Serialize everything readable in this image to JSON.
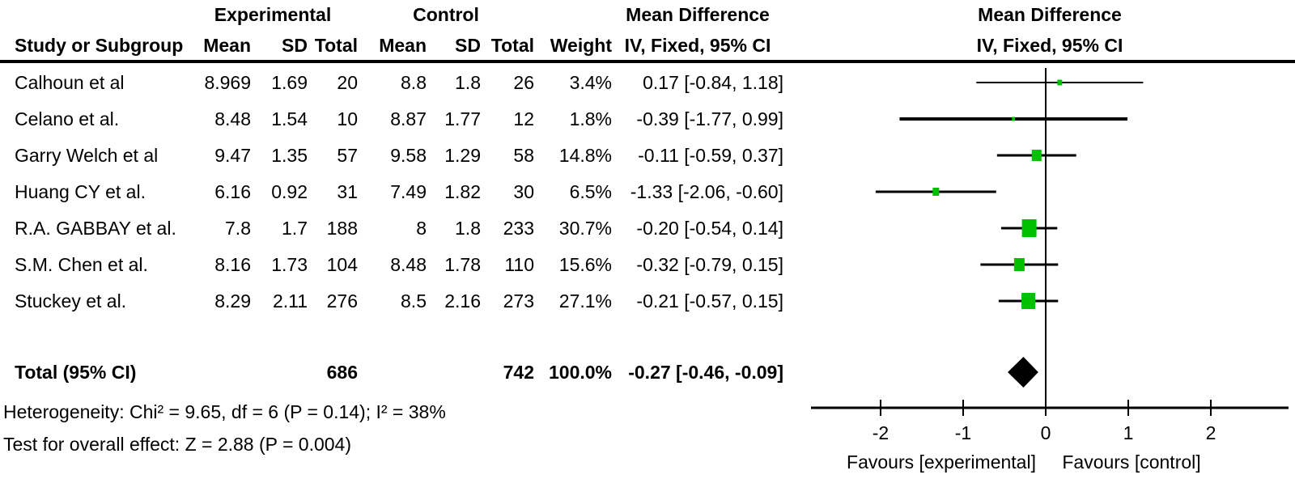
{
  "header": {
    "group_experimental": "Experimental",
    "group_control": "Control",
    "effect_text_title": "Mean Difference",
    "effect_plot_title": "Mean Difference",
    "columns": {
      "study": "Study or Subgroup",
      "mean_e": "Mean",
      "sd_e": "SD",
      "total_e": "Total",
      "mean_c": "Mean",
      "sd_c": "SD",
      "total_c": "Total",
      "weight": "Weight",
      "ci": "IV, Fixed, 95% CI",
      "ci_plot": "IV, Fixed, 95% CI"
    }
  },
  "table": {
    "rows": [
      {
        "study": "Calhoun et al",
        "mean_e": "8.969",
        "sd_e": "1.69",
        "total_e": "20",
        "mean_c": "8.8",
        "sd_c": "1.8",
        "total_c": "26",
        "weight": "3.4%",
        "ci": "0.17 [-0.84, 1.18]"
      },
      {
        "study": "Celano et al.",
        "mean_e": "8.48",
        "sd_e": "1.54",
        "total_e": "10",
        "mean_c": "8.87",
        "sd_c": "1.77",
        "total_c": "12",
        "weight": "1.8%",
        "ci": "-0.39 [-1.77, 0.99]"
      },
      {
        "study": "Garry Welch et al",
        "mean_e": "9.47",
        "sd_e": "1.35",
        "total_e": "57",
        "mean_c": "9.58",
        "sd_c": "1.29",
        "total_c": "58",
        "weight": "14.8%",
        "ci": "-0.11 [-0.59, 0.37]"
      },
      {
        "study": "Huang CY et al.",
        "mean_e": "6.16",
        "sd_e": "0.92",
        "total_e": "31",
        "mean_c": "7.49",
        "sd_c": "1.82",
        "total_c": "30",
        "weight": "6.5%",
        "ci": "-1.33 [-2.06, -0.60]"
      },
      {
        "study": "R.A. GABBAY et al.",
        "mean_e": "7.8",
        "sd_e": "1.7",
        "total_e": "188",
        "mean_c": "8",
        "sd_c": "1.8",
        "total_c": "233",
        "weight": "30.7%",
        "ci": "-0.20 [-0.54, 0.14]"
      },
      {
        "study": "S.M. Chen et al.",
        "mean_e": "8.16",
        "sd_e": "1.73",
        "total_e": "104",
        "mean_c": "8.48",
        "sd_c": "1.78",
        "total_c": "110",
        "weight": "15.6%",
        "ci": "-0.32 [-0.79, 0.15]"
      },
      {
        "study": "Stuckey et al.",
        "mean_e": "8.29",
        "sd_e": "2.11",
        "total_e": "276",
        "mean_c": "8.5",
        "sd_c": "2.16",
        "total_c": "273",
        "weight": "27.1%",
        "ci": "-0.21 [-0.57, 0.15]"
      }
    ],
    "total_row": {
      "label": "Total (95% CI)",
      "total_e": "686",
      "total_c": "742",
      "weight": "100.0%",
      "ci": "-0.27 [-0.46, -0.09]"
    }
  },
  "footnotes": {
    "heterogeneity": "Heterogeneity: Chi² = 9.65, df = 6 (P = 0.14); I² = 38%",
    "overall_effect": "Test for overall effect: Z = 2.88 (P = 0.004)"
  },
  "chart_data": {
    "type": "scatter",
    "variant": "forest-plot",
    "title": "Mean Difference",
    "effect_measure": "IV, Fixed, 95% CI",
    "x_ticks": [
      -2,
      -1,
      0,
      1,
      2
    ],
    "xlim": [
      -2.85,
      2.95
    ],
    "null_line_x": 0,
    "grid": false,
    "studies": [
      {
        "name": "Calhoun et al",
        "md": 0.17,
        "ci_low": -0.84,
        "ci_high": 1.18,
        "weight_pct": 3.4
      },
      {
        "name": "Celano et al.",
        "md": -0.39,
        "ci_low": -1.77,
        "ci_high": 0.99,
        "weight_pct": 1.8
      },
      {
        "name": "Garry Welch et al",
        "md": -0.11,
        "ci_low": -0.59,
        "ci_high": 0.37,
        "weight_pct": 14.8
      },
      {
        "name": "Huang CY et al.",
        "md": -1.33,
        "ci_low": -2.06,
        "ci_high": -0.6,
        "weight_pct": 6.5
      },
      {
        "name": "R.A. GABBAY et al.",
        "md": -0.2,
        "ci_low": -0.54,
        "ci_high": 0.14,
        "weight_pct": 30.7
      },
      {
        "name": "S.M. Chen et al.",
        "md": -0.32,
        "ci_low": -0.79,
        "ci_high": 0.15,
        "weight_pct": 15.6
      },
      {
        "name": "Stuckey et al.",
        "md": -0.21,
        "ci_low": -0.57,
        "ci_high": 0.15,
        "weight_pct": 27.1
      }
    ],
    "total": {
      "label": "Total (95% CI)",
      "md": -0.27,
      "ci_low": -0.46,
      "ci_high": -0.09,
      "weight_pct": 100.0
    },
    "favours_left": "Favours [experimental]",
    "favours_right": "Favours [control]",
    "marker_color": "#00c000",
    "ci_line_color": "#000000",
    "diamond_color": "#000000",
    "legend_position": "none"
  }
}
